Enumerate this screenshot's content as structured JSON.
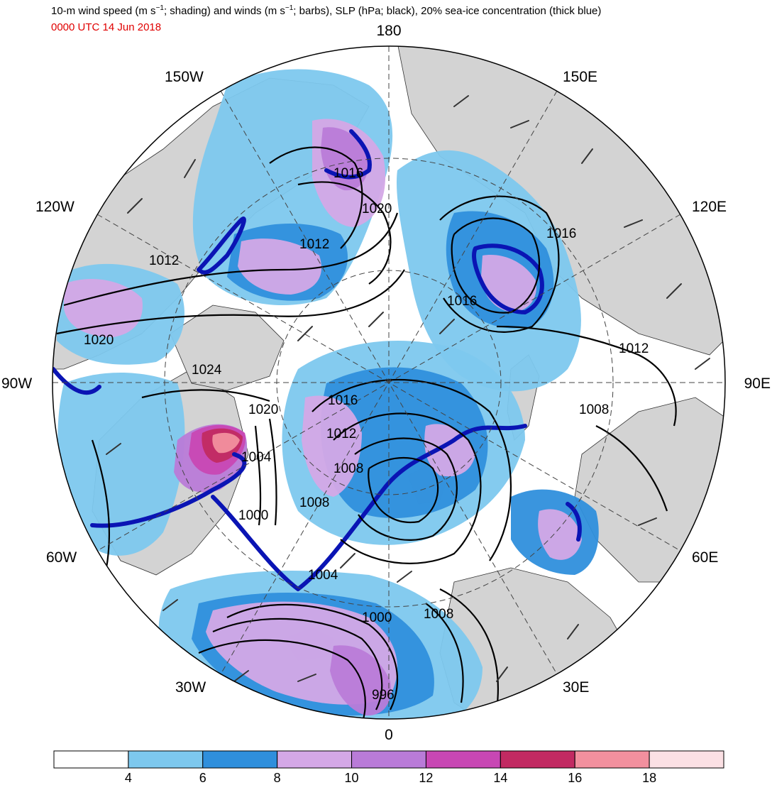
{
  "title_parts": {
    "a": "10-m wind speed (m s",
    "sup1": "−1",
    "b": "; shading) and winds (m s",
    "sup2": "−1",
    "c": "; barbs), SLP (hPa; black), 20% sea-ice concentration (thick blue)"
  },
  "valid_time": "0000 UTC 14 Jun 2018",
  "longitude_labels": [
    "180",
    "150E",
    "120E",
    "90E",
    "60E",
    "30E",
    "0",
    "30W",
    "60W",
    "90W",
    "120W",
    "150W"
  ],
  "isobar_labels": [
    "1016",
    "1020",
    "1012",
    "1012",
    "1020",
    "1024",
    "1020",
    "1016",
    "1016",
    "1012",
    "1004",
    "1008",
    "1000",
    "1008",
    "1012",
    "1008",
    "1004",
    "1000",
    "1008",
    "996",
    "1016"
  ],
  "colorbar": {
    "ticks": [
      "4",
      "6",
      "8",
      "10",
      "12",
      "14",
      "16",
      "18"
    ],
    "colors": [
      "#ffffff",
      "#7dc8ee",
      "#2f8fdc",
      "#d4a8e6",
      "#b97bd8",
      "#c847b4",
      "#c22a62",
      "#f2909e",
      "#fbe0e4"
    ]
  },
  "styling": {
    "land_color": "#d3d3d3",
    "ocean_color": "#ffffff",
    "sea_ice_contour_color": "#0a14b4",
    "isobar_color": "#000000"
  }
}
